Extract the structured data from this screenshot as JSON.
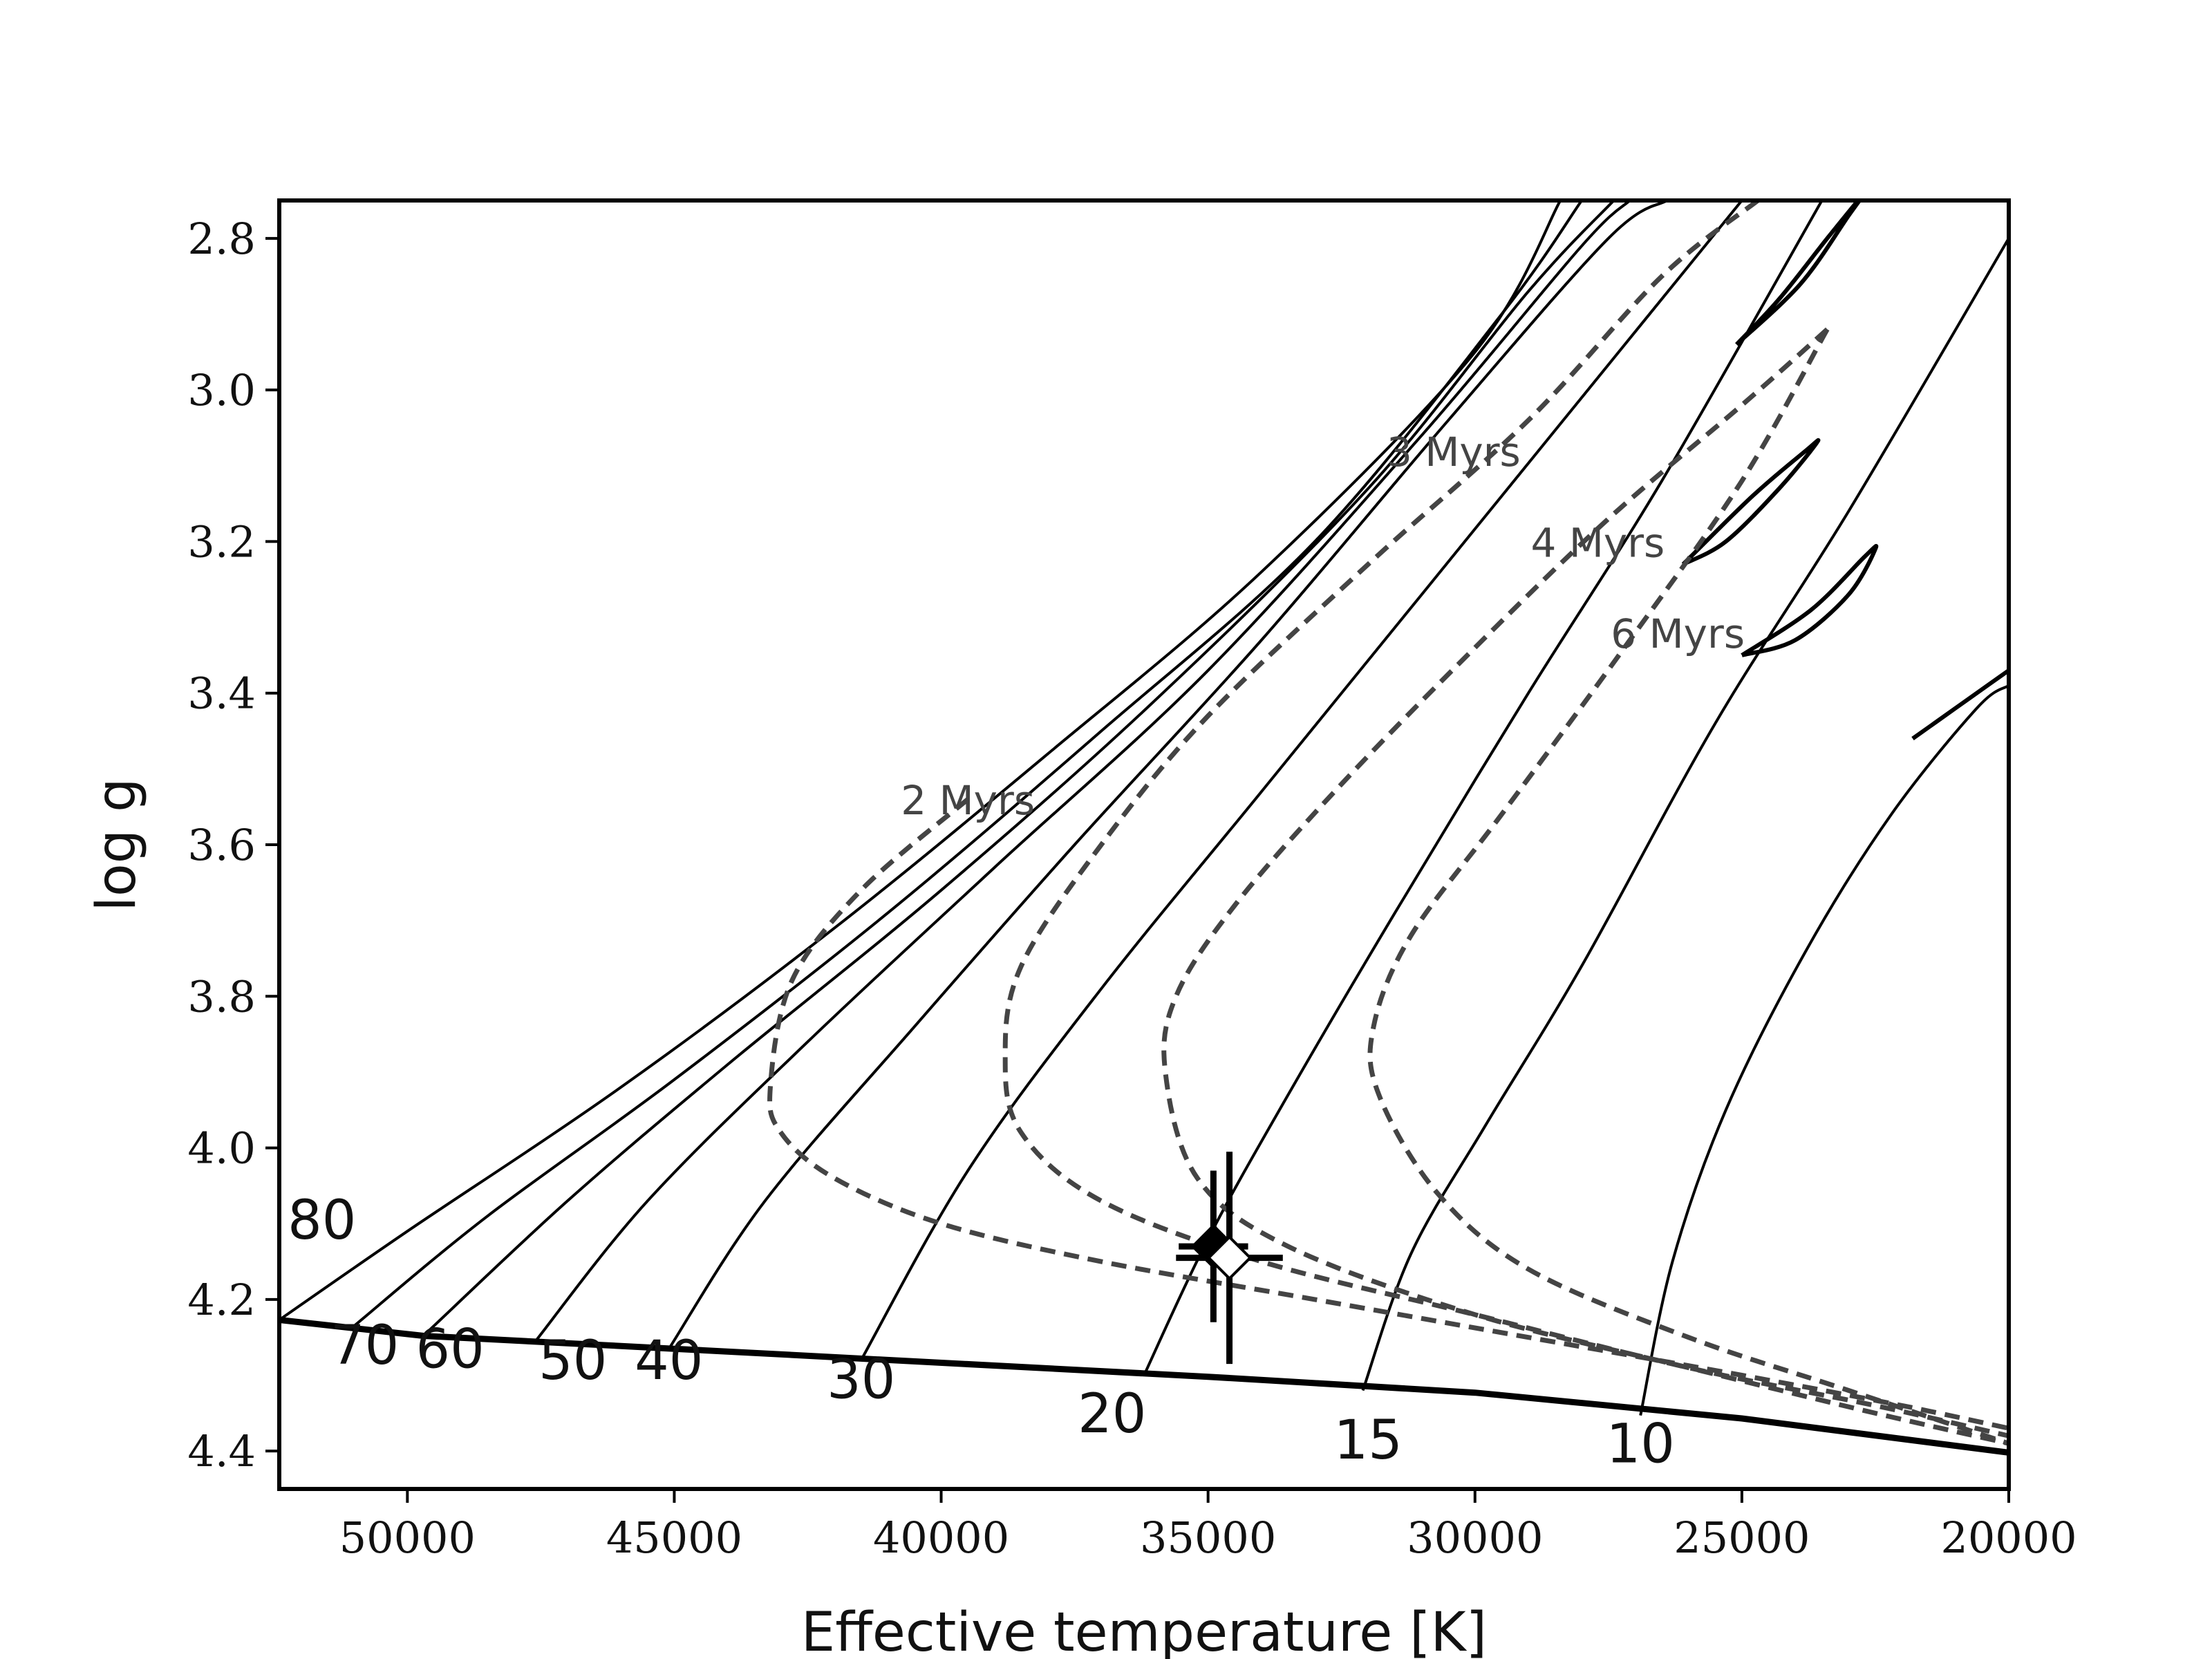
{
  "chart_data": {
    "type": "line",
    "xlabel": "Effective temperature [K]",
    "ylabel": "log g",
    "xlim": [
      52400,
      20000
    ],
    "ylim": [
      4.45,
      2.75
    ],
    "x_reversed": true,
    "y_reversed": true,
    "grid": false,
    "xticks": [
      50000,
      45000,
      40000,
      35000,
      30000,
      25000,
      20000
    ],
    "xtick_labels": [
      "50000",
      "45000",
      "40000",
      "35000",
      "30000",
      "25000",
      "20000"
    ],
    "yticks": [
      2.8,
      3.0,
      3.2,
      3.4,
      3.6,
      3.8,
      4.0,
      4.2,
      4.4
    ],
    "ytick_labels": [
      "2.8",
      "3.0",
      "3.2",
      "3.4",
      "3.6",
      "3.8",
      "4.0",
      "4.2",
      "4.4"
    ],
    "zams": {
      "color": "#000000",
      "points": [
        [
          52400,
          4.227
        ],
        [
          49700,
          4.248
        ],
        [
          45000,
          4.265
        ],
        [
          35000,
          4.302
        ],
        [
          30000,
          4.323
        ],
        [
          25000,
          4.357
        ],
        [
          20000,
          4.402
        ]
      ]
    },
    "tracks": [
      {
        "label": "80",
        "color": "#000000",
        "points": [
          [
            52400,
            4.227
          ],
          [
            50000,
            4.11
          ],
          [
            46000,
            3.92
          ],
          [
            42000,
            3.71
          ],
          [
            38000,
            3.48
          ],
          [
            34000,
            3.24
          ],
          [
            30000,
            2.95
          ],
          [
            28400,
            2.75
          ]
        ]
      },
      {
        "label": "70",
        "color": "#000000",
        "points": [
          [
            51000,
            4.235
          ],
          [
            48500,
            4.09
          ],
          [
            45000,
            3.91
          ],
          [
            41000,
            3.69
          ],
          [
            37000,
            3.45
          ],
          [
            33000,
            3.2
          ],
          [
            29500,
            2.9
          ],
          [
            28000,
            2.75
          ]
        ]
      },
      {
        "label": "60",
        "color": "#000000",
        "points": [
          [
            49700,
            4.248
          ],
          [
            47000,
            4.07
          ],
          [
            44000,
            3.89
          ],
          [
            40000,
            3.66
          ],
          [
            36000,
            3.41
          ],
          [
            32000,
            3.13
          ],
          [
            29000,
            2.87
          ],
          [
            27400,
            2.75
          ]
        ]
      },
      {
        "label": "50",
        "color": "#000000",
        "points": [
          [
            47600,
            4.255
          ],
          [
            45500,
            4.07
          ],
          [
            42500,
            3.86
          ],
          [
            39000,
            3.63
          ],
          [
            35000,
            3.37
          ],
          [
            31000,
            3.06
          ],
          [
            28000,
            2.81
          ],
          [
            27100,
            2.75
          ]
        ]
      },
      {
        "label": "40",
        "color": "#000000",
        "points": [
          [
            45100,
            4.265
          ],
          [
            43300,
            4.07
          ],
          [
            40500,
            3.84
          ],
          [
            37500,
            3.6
          ],
          [
            34000,
            3.33
          ],
          [
            30500,
            3.04
          ],
          [
            27500,
            2.8
          ],
          [
            26400,
            2.75
          ]
        ]
      },
      {
        "label": "30",
        "color": "#000000",
        "points": [
          [
            41500,
            4.28
          ],
          [
            39500,
            4.03
          ],
          [
            37000,
            3.79
          ],
          [
            34000,
            3.53
          ],
          [
            31000,
            3.27
          ],
          [
            28000,
            3.01
          ],
          [
            25000,
            2.75
          ]
        ]
      },
      {
        "label": "20",
        "color": "#000000",
        "points": [
          [
            36200,
            4.3
          ],
          [
            35000,
            4.12
          ],
          [
            33500,
            3.93
          ],
          [
            31500,
            3.69
          ],
          [
            29000,
            3.4
          ],
          [
            26500,
            3.12
          ],
          [
            23500,
            2.75
          ]
        ]
      },
      {
        "label": "15",
        "color": "#000000",
        "points": [
          [
            32100,
            4.32
          ],
          [
            31200,
            4.14
          ],
          [
            29800,
            3.97
          ],
          [
            28000,
            3.76
          ],
          [
            25500,
            3.44
          ],
          [
            23000,
            3.16
          ],
          [
            20000,
            2.8
          ]
        ]
      },
      {
        "label": "10",
        "color": "#000000",
        "points": [
          [
            26900,
            4.353
          ],
          [
            26300,
            4.15
          ],
          [
            25300,
            3.95
          ],
          [
            23800,
            3.74
          ],
          [
            22200,
            3.56
          ],
          [
            20600,
            3.42
          ],
          [
            20000,
            3.39
          ]
        ]
      }
    ],
    "hook_segments": [
      {
        "color": "#000000",
        "points": [
          [
            25100,
            2.94
          ],
          [
            23900,
            2.86
          ],
          [
            23000,
            2.77
          ],
          [
            22700,
            2.74
          ],
          [
            23400,
            2.8
          ],
          [
            24300,
            2.88
          ],
          [
            25100,
            2.94
          ]
        ]
      },
      {
        "color": "#000000",
        "points": [
          [
            26100,
            3.23
          ],
          [
            24800,
            3.14
          ],
          [
            23800,
            3.08
          ],
          [
            23600,
            3.07
          ],
          [
            24300,
            3.13
          ],
          [
            25300,
            3.2
          ],
          [
            26100,
            3.23
          ]
        ]
      },
      {
        "color": "#000000",
        "points": [
          [
            25000,
            3.35
          ],
          [
            23700,
            3.29
          ],
          [
            22700,
            3.22
          ],
          [
            22500,
            3.21
          ],
          [
            23000,
            3.27
          ],
          [
            24000,
            3.33
          ],
          [
            25000,
            3.35
          ]
        ]
      },
      {
        "color": "#000000",
        "points": [
          [
            21800,
            3.46
          ],
          [
            21000,
            3.42
          ],
          [
            20400,
            3.39
          ],
          [
            20000,
            3.37
          ]
        ]
      }
    ],
    "isochrones": [
      {
        "label": "2 Myrs",
        "color": "#444444",
        "points": [
          [
            39500,
            3.54
          ],
          [
            41500,
            3.66
          ],
          [
            42800,
            3.78
          ],
          [
            43200,
            3.92
          ],
          [
            43000,
            3.98
          ],
          [
            42000,
            4.04
          ],
          [
            40000,
            4.1
          ],
          [
            37000,
            4.15
          ],
          [
            33000,
            4.2
          ],
          [
            29000,
            4.25
          ],
          [
            25000,
            4.3
          ],
          [
            22000,
            4.34
          ],
          [
            20000,
            4.37
          ]
        ]
      },
      {
        "label": "3 Myrs",
        "color": "#444444",
        "points": [
          [
            24700,
            2.75
          ],
          [
            26500,
            2.85
          ],
          [
            29000,
            3.04
          ],
          [
            32000,
            3.23
          ],
          [
            35000,
            3.43
          ],
          [
            37000,
            3.6
          ],
          [
            38500,
            3.76
          ],
          [
            38800,
            3.88
          ],
          [
            38500,
            3.98
          ],
          [
            37000,
            4.07
          ],
          [
            34000,
            4.15
          ],
          [
            30000,
            4.22
          ],
          [
            26000,
            4.29
          ],
          [
            22500,
            4.34
          ],
          [
            20000,
            4.38
          ]
        ]
      },
      {
        "label": "4 Myrs",
        "color": "#444444",
        "points": [
          [
            23400,
            2.92
          ],
          [
            25000,
            3.02
          ],
          [
            27500,
            3.17
          ],
          [
            30000,
            3.34
          ],
          [
            32500,
            3.52
          ],
          [
            34500,
            3.68
          ],
          [
            35600,
            3.8
          ],
          [
            35800,
            3.9
          ],
          [
            35200,
            4.04
          ],
          [
            33500,
            4.13
          ],
          [
            30000,
            4.22
          ],
          [
            26000,
            4.29
          ],
          [
            22500,
            4.35
          ],
          [
            20000,
            4.39
          ]
        ]
      },
      {
        "label": "6 Myrs",
        "color": "#444444",
        "points": [
          [
            23400,
            2.92
          ],
          [
            25000,
            3.12
          ],
          [
            27200,
            3.34
          ],
          [
            29500,
            3.56
          ],
          [
            31200,
            3.72
          ],
          [
            31900,
            3.84
          ],
          [
            31800,
            3.93
          ],
          [
            30700,
            4.06
          ],
          [
            29000,
            4.16
          ],
          [
            26000,
            4.25
          ],
          [
            23000,
            4.32
          ],
          [
            20000,
            4.39
          ]
        ]
      }
    ],
    "isochrone_label_anchors": {
      "2 Myrs": [
        39500,
        3.56
      ],
      "3 Myrs": [
        30400,
        3.1
      ],
      "4 Myrs": [
        27700,
        3.22
      ],
      "6 Myrs": [
        26200,
        3.34
      ]
    },
    "mass_label_anchors": {
      "80": [
        51600,
        4.12
      ],
      "70": [
        50800,
        4.285
      ],
      "60": [
        49200,
        4.29
      ],
      "50": [
        46900,
        4.305
      ],
      "40": [
        45100,
        4.305
      ],
      "30": [
        41500,
        4.33
      ],
      "20": [
        36800,
        4.375
      ],
      "15": [
        32000,
        4.41
      ],
      "10": [
        26900,
        4.415
      ]
    },
    "data_points": [
      {
        "name": "filled-diamond",
        "x": 34900,
        "y": 4.13,
        "xerr": 650,
        "yerr": 0.1,
        "fill": "#000000"
      },
      {
        "name": "open-diamond",
        "x": 34600,
        "y": 4.145,
        "xerr": 1000,
        "yerr": 0.14,
        "fill": "#ffffff"
      }
    ]
  }
}
